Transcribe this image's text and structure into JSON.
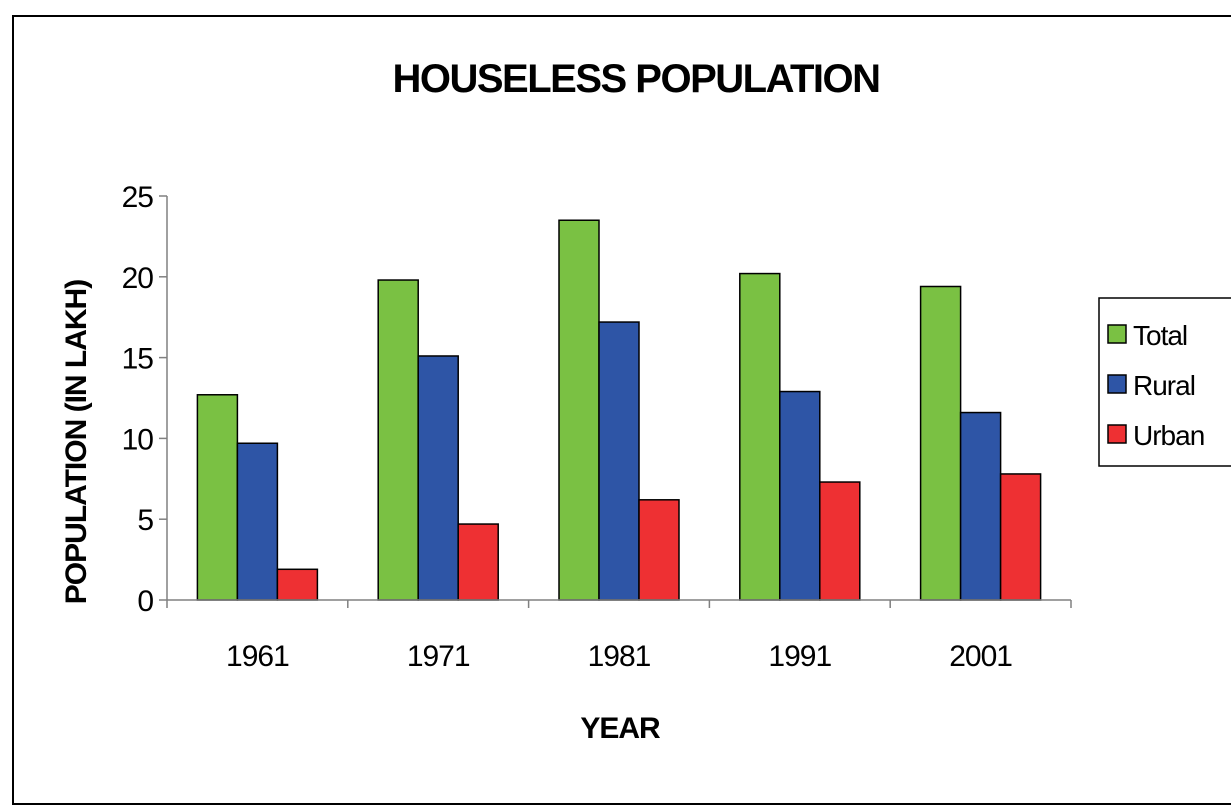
{
  "chart_data": {
    "type": "bar",
    "title": "HOUSELESS POPULATION",
    "xlabel": "YEAR",
    "ylabel": "POPULATION (IN LAKH)",
    "categories": [
      "1961",
      "1971",
      "1981",
      "1991",
      "2001"
    ],
    "series": [
      {
        "name": "Total",
        "color": "#7ac143",
        "values": [
          12.7,
          19.8,
          23.5,
          20.2,
          19.4
        ]
      },
      {
        "name": "Rural",
        "color": "#2e55a6",
        "values": [
          9.7,
          15.1,
          17.2,
          12.9,
          11.6
        ]
      },
      {
        "name": "Urban",
        "color": "#ee3033",
        "values": [
          1.9,
          4.7,
          6.2,
          7.3,
          7.8
        ]
      }
    ],
    "ylim": [
      0,
      25
    ],
    "yticks": [
      "0",
      "5",
      "10",
      "15",
      "20",
      "25"
    ],
    "grid": false,
    "legend_position": "right"
  }
}
